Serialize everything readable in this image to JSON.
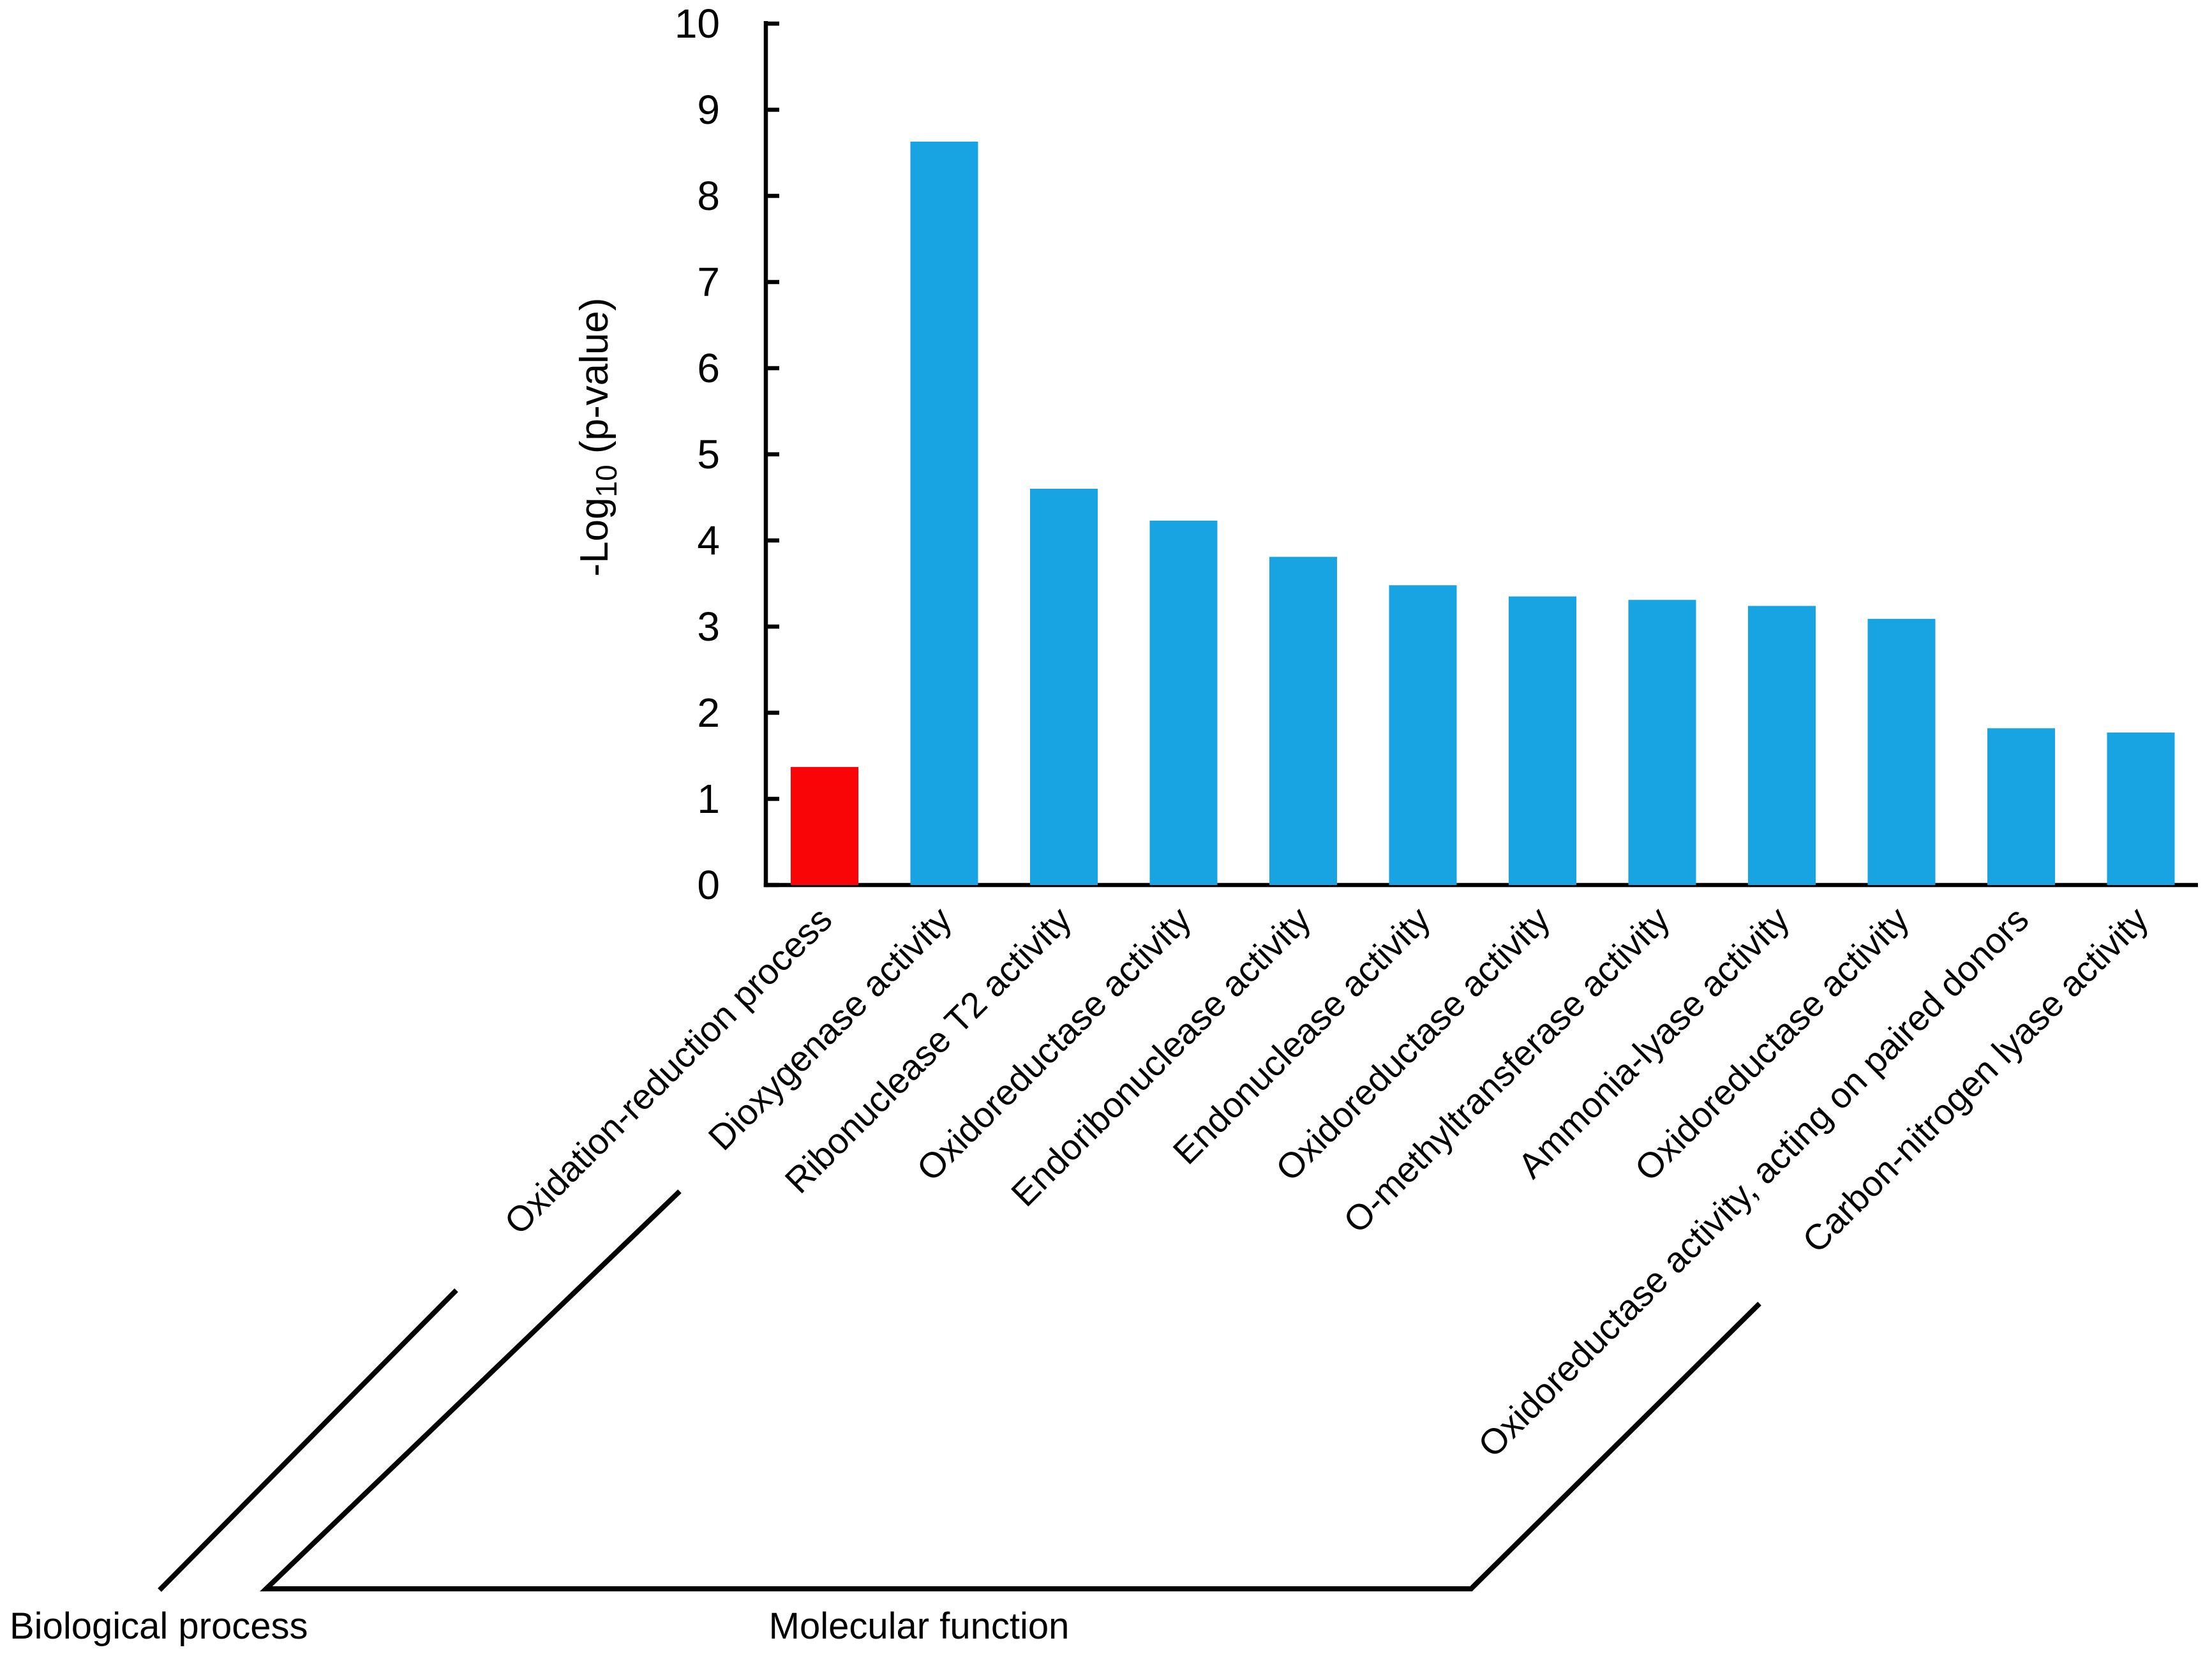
{
  "figure": {
    "background_color": "#FFFFFF",
    "axis_color": "#000000",
    "text_color": "#000000"
  },
  "chart_data": {
    "type": "bar",
    "title": "",
    "xlabel": "",
    "ylabel": "-Log10 (p-value)",
    "ylabel_parts": {
      "prefix": "-Log",
      "sub": "10",
      "suffix": " (p-value)"
    },
    "ylim": [
      0,
      10
    ],
    "ytick_step": 1,
    "ytick_labels": [
      "0",
      "1",
      "2",
      "3",
      "4",
      "5",
      "6",
      "7",
      "8",
      "9",
      "10"
    ],
    "grid": false,
    "legend": false,
    "bar_colors_legend": {
      "Biological process": "#FA0507",
      "Molecular function": "#18A4E2"
    },
    "bars": [
      {
        "label": "Oxidation-reduction process",
        "value": 1.37,
        "group": "Biological process",
        "color": "#FA0507"
      },
      {
        "label": "Dioxygenase activity",
        "value": 8.63,
        "group": "Molecular function",
        "color": "#18A4E2"
      },
      {
        "label": "Ribonuclease T2 activity",
        "value": 4.6,
        "group": "Molecular function",
        "color": "#18A4E2"
      },
      {
        "label": "Oxidoreductase activity",
        "value": 4.23,
        "group": "Molecular function",
        "color": "#18A4E2"
      },
      {
        "label": "Endoribonuclease activity",
        "value": 3.81,
        "group": "Molecular function",
        "color": "#18A4E2"
      },
      {
        "label": "Endonuclease activity",
        "value": 3.48,
        "group": "Molecular function",
        "color": "#18A4E2"
      },
      {
        "label": "Oxidoreductase activity",
        "value": 3.35,
        "group": "Molecular function",
        "color": "#18A4E2"
      },
      {
        "label": "O-methyltransferase activity",
        "value": 3.31,
        "group": "Molecular function",
        "color": "#18A4E2"
      },
      {
        "label": "Ammonia-lyase activity",
        "value": 3.24,
        "group": "Molecular function",
        "color": "#18A4E2"
      },
      {
        "label": "Oxidoreductase activity",
        "value": 3.09,
        "group": "Molecular function",
        "color": "#18A4E2"
      },
      {
        "label": "Oxidoreductase activity, acting on paired donors",
        "value": 1.82,
        "group": "Molecular function",
        "color": "#18A4E2"
      },
      {
        "label": "Carbon-nitrogen lyase activity",
        "value": 1.77,
        "group": "Molecular function",
        "color": "#18A4E2"
      }
    ],
    "group_labels": [
      {
        "label": "Biological process"
      },
      {
        "label": "Molecular function"
      }
    ]
  }
}
